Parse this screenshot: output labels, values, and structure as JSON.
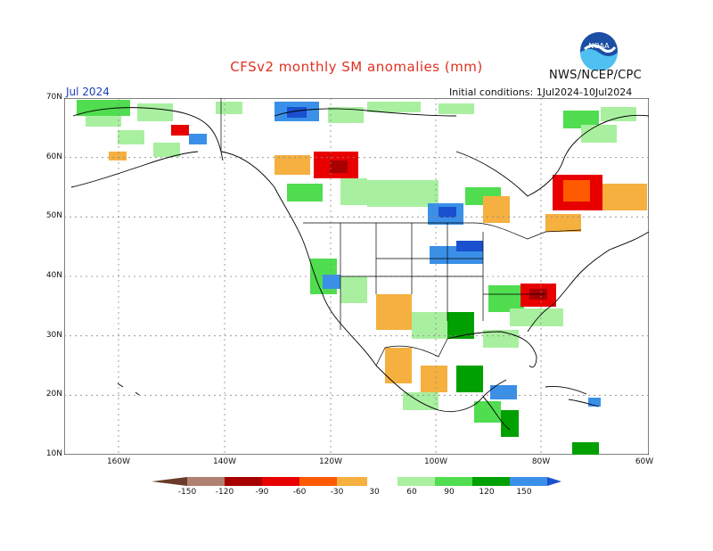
{
  "header": {
    "title": "CFSv2 monthly SM anomalies (mm)",
    "agency": "NWS/NCEP/CPC",
    "month": "Jul 2024",
    "initial_conditions": "Initial conditions: 1Jul2024-10Jul2024",
    "logo_text": "NOAA"
  },
  "axes": {
    "lat_labels": [
      "70N",
      "60N",
      "50N",
      "40N",
      "30N",
      "20N",
      "10N"
    ],
    "lon_labels": [
      "160W",
      "140W",
      "120W",
      "100W",
      "80W",
      "60W"
    ]
  },
  "colorbar": {
    "labels": [
      "-150",
      "-120",
      "-90",
      "-60",
      "-30",
      "30",
      "60",
      "90",
      "120",
      "150"
    ],
    "colors": [
      "#6b3a2a",
      "#b08070",
      "#a80000",
      "#e80000",
      "#ff5a00",
      "#f5b040",
      "#ffffff",
      "#a8f0a0",
      "#50dd50",
      "#00a000",
      "#3a90e8",
      "#1a50d0"
    ]
  },
  "colors": {
    "land": "#ffffff",
    "grid": "#888888",
    "coast": "#000000"
  }
}
